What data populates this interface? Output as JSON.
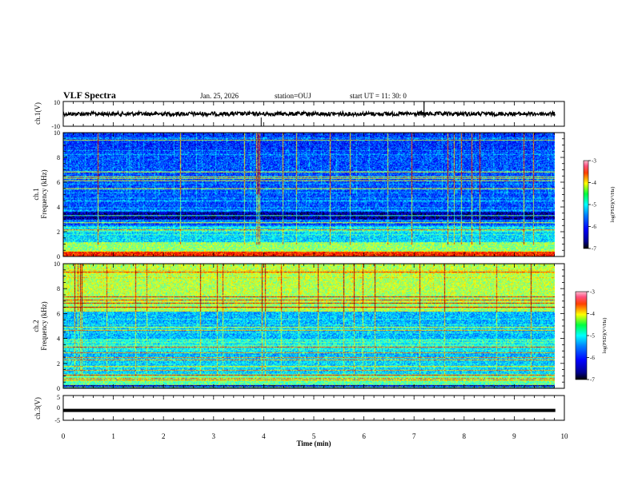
{
  "header": {
    "title": "VLF Spectra",
    "date": "Jan. 25, 2026",
    "station": "station=OUJ",
    "start_ut": "start UT =  11: 30: 0"
  },
  "chart_data": [
    {
      "type": "line",
      "name": "ch1-waveform",
      "ylabel": "ch.1(V)",
      "ylim": [
        -10,
        10
      ],
      "yticks": [
        "10",
        "-10"
      ],
      "baseline": 0,
      "spikes_at_min": [
        3.95,
        7.2
      ]
    },
    {
      "type": "heatmap",
      "name": "ch1-spectrogram",
      "ylabel_line1": "ch.1",
      "ylabel_line2": "Frequency (kHz)",
      "ylim": [
        0,
        10
      ],
      "yticks": [
        "0",
        "2",
        "4",
        "6",
        "8",
        "10"
      ],
      "colorbar": {
        "label": "log(PSD)(V²/Hz)",
        "range": [
          -7,
          -3
        ],
        "ticks": [
          "-3",
          "-4",
          "-5",
          "-6",
          "-7"
        ]
      }
    },
    {
      "type": "heatmap",
      "name": "ch2-spectrogram",
      "ylabel_line1": "ch.2",
      "ylabel_line2": "Frequency (kHz)",
      "ylim": [
        0,
        10
      ],
      "yticks": [
        "0",
        "2",
        "4",
        "6",
        "8",
        "10"
      ],
      "colorbar": {
        "label": "log(PSD)(V²/Hz)",
        "range": [
          -7,
          -3
        ],
        "ticks": [
          "-3",
          "-4",
          "-5",
          "-6",
          "-7"
        ]
      }
    },
    {
      "type": "line",
      "name": "ch3-trace",
      "ylabel": "ch.3(V)",
      "ylim": [
        -5,
        5
      ],
      "yticks": [
        "5",
        "0",
        "-5"
      ],
      "value": -1
    }
  ],
  "xaxis": {
    "label": "Time (min)",
    "range": [
      0,
      10
    ],
    "data_end": 9.82,
    "ticks": [
      "0",
      "1",
      "2",
      "3",
      "4",
      "5",
      "6",
      "7",
      "8",
      "9",
      "10"
    ]
  },
  "colors": {
    "frame": "#000000",
    "background": "#ffffff"
  }
}
